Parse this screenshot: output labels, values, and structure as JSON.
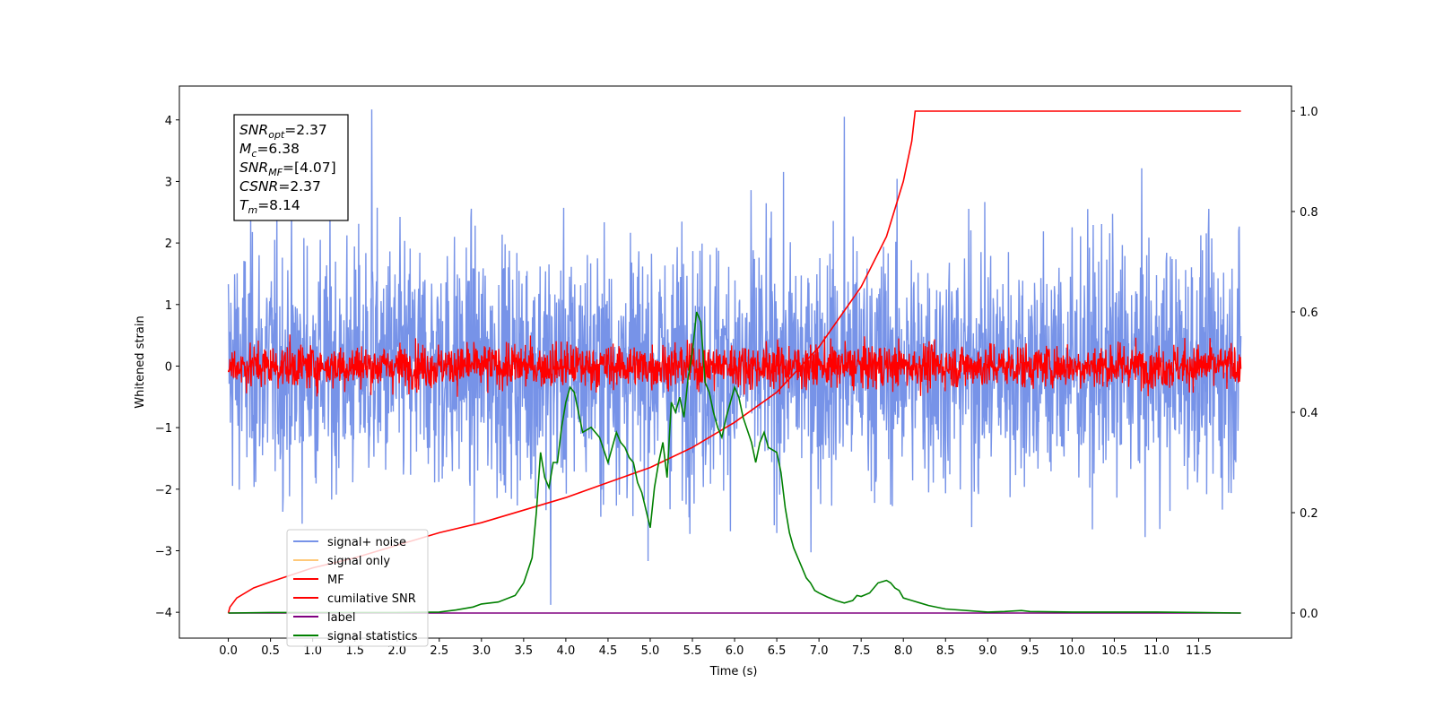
{
  "chart_data": {
    "type": "line",
    "xlabel": "Time (s)",
    "ylabel_left": "Whitened strain",
    "ylabel_right": "",
    "xlim": [
      -0.58,
      12.6
    ],
    "ylim_left": [
      -4.42,
      4.55
    ],
    "ylim_right": [
      -0.05,
      1.05
    ],
    "x_ticks": [
      "0.0",
      "0.5",
      "1.0",
      "1.5",
      "2.0",
      "2.5",
      "3.0",
      "3.5",
      "4.0",
      "4.5",
      "5.0",
      "5.5",
      "6.0",
      "6.5",
      "7.0",
      "7.5",
      "8.0",
      "8.5",
      "9.0",
      "9.5",
      "10.0",
      "10.5",
      "11.0",
      "11.5"
    ],
    "y_ticks_left": [
      "−4",
      "−3",
      "−2",
      "−1",
      "0",
      "1",
      "2",
      "3",
      "4"
    ],
    "y_ticks_right": [
      "0.0",
      "0.2",
      "0.4",
      "0.6",
      "0.8",
      "1.0"
    ],
    "grid": false,
    "legend_position": "lower-left",
    "annotation_box": {
      "lines": [
        {
          "main": "SNR",
          "sub": "opt",
          "rest": "=2.37"
        },
        {
          "main": "M",
          "sub": "c",
          "rest": "=6.38"
        },
        {
          "main": "SNR",
          "sub": "MF",
          "rest": "=[4.07]"
        },
        {
          "main": "CSNR",
          "sub": "",
          "rest": "=2.37"
        },
        {
          "main": "T",
          "sub": "m",
          "rest": "=8.14"
        }
      ]
    },
    "series": [
      {
        "name": "signal+ noise",
        "color": "#7793e8",
        "axis": "left",
        "kind": "noise",
        "x_range": [
          0,
          12
        ],
        "amplitude_std": 1.0,
        "spikes": [
          {
            "x": 1.7,
            "y": 4.17
          },
          {
            "x": 3.82,
            "y": -3.88
          },
          {
            "x": 7.3,
            "y": 4.05
          }
        ]
      },
      {
        "name": "signal only",
        "color": "#ffc97a",
        "axis": "left",
        "kind": "none"
      },
      {
        "name": "MF",
        "color": "#ff0000",
        "axis": "left",
        "kind": "noise",
        "x_range": [
          0,
          12
        ],
        "amplitude_std": 0.18
      },
      {
        "name": "cumilative SNR",
        "color": "#ff0000",
        "axis": "right",
        "x": [
          0,
          0.02,
          0.1,
          0.3,
          0.5,
          1.0,
          1.5,
          2.0,
          2.5,
          3.0,
          3.5,
          4.0,
          4.5,
          5.0,
          5.5,
          6.0,
          6.5,
          7.0,
          7.5,
          7.8,
          8.0,
          8.1,
          8.14,
          12.0
        ],
        "y": [
          0.0,
          0.012,
          0.03,
          0.05,
          0.062,
          0.09,
          0.11,
          0.135,
          0.16,
          0.18,
          0.205,
          0.23,
          0.26,
          0.29,
          0.33,
          0.38,
          0.44,
          0.53,
          0.65,
          0.75,
          0.86,
          0.94,
          1.0,
          1.0
        ]
      },
      {
        "name": "label",
        "color": "#800080",
        "axis": "right",
        "x": [
          0,
          12
        ],
        "y": [
          0,
          0
        ]
      },
      {
        "name": "signal statistics",
        "color": "#008000",
        "axis": "right",
        "x": [
          0,
          0.5,
          1.0,
          1.5,
          2.0,
          2.5,
          2.7,
          2.9,
          3.0,
          3.2,
          3.4,
          3.5,
          3.6,
          3.65,
          3.7,
          3.75,
          3.8,
          3.85,
          3.9,
          3.95,
          4.0,
          4.05,
          4.1,
          4.15,
          4.2,
          4.3,
          4.4,
          4.5,
          4.55,
          4.6,
          4.65,
          4.7,
          4.75,
          4.8,
          4.85,
          4.9,
          5.0,
          5.05,
          5.1,
          5.15,
          5.2,
          5.25,
          5.3,
          5.35,
          5.4,
          5.45,
          5.5,
          5.55,
          5.6,
          5.65,
          5.7,
          5.75,
          5.8,
          5.85,
          5.9,
          5.95,
          6.0,
          6.05,
          6.1,
          6.2,
          6.25,
          6.3,
          6.35,
          6.4,
          6.5,
          6.55,
          6.6,
          6.65,
          6.7,
          6.75,
          6.8,
          6.85,
          6.9,
          6.95,
          7.0,
          7.1,
          7.2,
          7.3,
          7.4,
          7.45,
          7.5,
          7.6,
          7.7,
          7.8,
          7.85,
          7.9,
          7.95,
          8.0,
          8.1,
          8.2,
          8.3,
          8.5,
          9.0,
          9.2,
          9.4,
          9.5,
          10.0,
          10.5,
          11.0,
          11.5,
          12.0
        ],
        "y": [
          0.0,
          0.001,
          0.001,
          0.001,
          0.001,
          0.002,
          0.006,
          0.012,
          0.018,
          0.022,
          0.035,
          0.06,
          0.11,
          0.2,
          0.32,
          0.27,
          0.25,
          0.3,
          0.3,
          0.37,
          0.42,
          0.45,
          0.44,
          0.4,
          0.36,
          0.37,
          0.35,
          0.3,
          0.33,
          0.36,
          0.34,
          0.33,
          0.31,
          0.3,
          0.26,
          0.24,
          0.17,
          0.25,
          0.3,
          0.34,
          0.27,
          0.42,
          0.4,
          0.43,
          0.39,
          0.47,
          0.52,
          0.6,
          0.58,
          0.46,
          0.44,
          0.4,
          0.37,
          0.35,
          0.39,
          0.42,
          0.45,
          0.43,
          0.39,
          0.34,
          0.3,
          0.34,
          0.36,
          0.33,
          0.32,
          0.28,
          0.21,
          0.16,
          0.13,
          0.11,
          0.09,
          0.07,
          0.06,
          0.045,
          0.04,
          0.032,
          0.025,
          0.02,
          0.025,
          0.035,
          0.033,
          0.04,
          0.06,
          0.065,
          0.06,
          0.05,
          0.045,
          0.03,
          0.025,
          0.02,
          0.015,
          0.008,
          0.002,
          0.003,
          0.005,
          0.003,
          0.002,
          0.002,
          0.002,
          0.001,
          0.0
        ]
      }
    ]
  }
}
